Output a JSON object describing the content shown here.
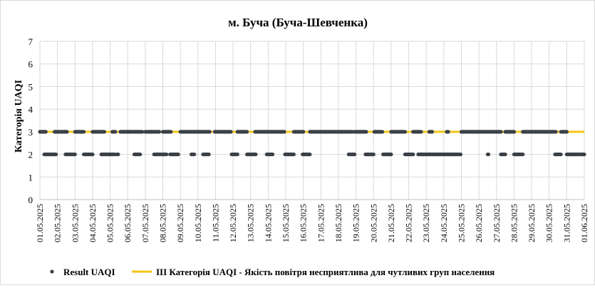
{
  "chart_data": {
    "type": "scatter",
    "title": "м. Буча (Буча-Шевченка)",
    "ylabel": "Категорія UAQI",
    "xlabel": "",
    "ylim": [
      0,
      7
    ],
    "yticks": [
      "0",
      "1",
      "2",
      "3",
      "4",
      "5",
      "6",
      "7"
    ],
    "xticks": [
      "01.05.2025",
      "02.05.2025",
      "03.05.2025",
      "04.05.2025",
      "05.05.2025",
      "06.05.2025",
      "07.05.2025",
      "08.05.2025",
      "09.05.2025",
      "10.05.2025",
      "11.05.2025",
      "12.05.2025",
      "13.05.2025",
      "14.05.2025",
      "15.05.2025",
      "16.05.2025",
      "17.05.2025",
      "18.05.2025",
      "19.05.2025",
      "20.05.2025",
      "21.05.2025",
      "22.05.2025",
      "23.05.2025",
      "24.05.2025",
      "25.05.2025",
      "26.05.2025",
      "27.05.2025",
      "28.05.2025",
      "29.05.2025",
      "30.05.2025",
      "31.05.2025",
      "01.06.2025"
    ],
    "grid": "vertical and horizontal",
    "legend_position": "bottom",
    "series": [
      {
        "name": "Result UAQI",
        "kind": "points",
        "color": "#3b4047",
        "segments": [
          {
            "y": 3,
            "from": "01.05.2025 00:00",
            "to": "01.05.2025 08:00"
          },
          {
            "y": 2,
            "from": "01.05.2025 06:00",
            "to": "01.05.2025 22:00"
          },
          {
            "y": 3,
            "from": "01.05.2025 20:00",
            "to": "02.05.2025 13:00"
          },
          {
            "y": 2,
            "from": "02.05.2025 11:00",
            "to": "03.05.2025 00:00"
          },
          {
            "y": 3,
            "from": "03.05.2025 00:00",
            "to": "03.05.2025 12:00"
          },
          {
            "y": 2,
            "from": "03.05.2025 12:00",
            "to": "04.05.2025 00:00"
          },
          {
            "y": 3,
            "from": "04.05.2025 00:00",
            "to": "04.05.2025 16:00"
          },
          {
            "y": 2,
            "from": "04.05.2025 12:00",
            "to": "05.05.2025 06:00"
          },
          {
            "y": 3,
            "from": "05.05.2025 03:00",
            "to": "05.05.2025 07:00"
          },
          {
            "y": 2,
            "from": "05.05.2025 09:00",
            "to": "05.05.2025 11:00"
          },
          {
            "y": 3,
            "from": "05.05.2025 14:00",
            "to": "06.05.2025 20:00"
          },
          {
            "y": 2,
            "from": "06.05.2025 09:00",
            "to": "06.05.2025 17:00"
          },
          {
            "y": 3,
            "from": "07.05.2025 00:00",
            "to": "07.05.2025 19:00"
          },
          {
            "y": 2,
            "from": "07.05.2025 12:00",
            "to": "08.05.2025 05:00"
          },
          {
            "y": 3,
            "from": "08.05.2025 00:00",
            "to": "08.05.2025 11:00"
          },
          {
            "y": 2,
            "from": "08.05.2025 10:00",
            "to": "08.05.2025 21:00"
          },
          {
            "y": 3,
            "from": "09.05.2025 00:00",
            "to": "10.05.2025 16:00"
          },
          {
            "y": 2,
            "from": "09.05.2025 15:00",
            "to": "09.05.2025 19:00"
          },
          {
            "y": 2,
            "from": "10.05.2025 07:00",
            "to": "10.05.2025 15:00"
          },
          {
            "y": 3,
            "from": "10.05.2025 23:00",
            "to": "11.05.2025 21:00"
          },
          {
            "y": 2,
            "from": "11.05.2025 22:00",
            "to": "12.05.2025 06:00"
          },
          {
            "y": 3,
            "from": "12.05.2025 06:00",
            "to": "12.05.2025 19:00"
          },
          {
            "y": 2,
            "from": "12.05.2025 19:00",
            "to": "13.05.2025 07:00"
          },
          {
            "y": 3,
            "from": "13.05.2025 06:00",
            "to": "14.05.2025 22:00"
          },
          {
            "y": 2,
            "from": "13.05.2025 22:00",
            "to": "14.05.2025 06:00"
          },
          {
            "y": 2,
            "from": "14.05.2025 23:00",
            "to": "15.05.2025 11:00"
          },
          {
            "y": 3,
            "from": "15.05.2025 11:00",
            "to": "16.05.2025 00:00"
          },
          {
            "y": 2,
            "from": "15.05.2025 23:00",
            "to": "16.05.2025 09:00"
          },
          {
            "y": 3,
            "from": "16.05.2025 09:00",
            "to": "18.05.2025 19:00"
          },
          {
            "y": 2,
            "from": "18.05.2025 14:00",
            "to": "18.05.2025 22:00"
          },
          {
            "y": 3,
            "from": "18.05.2025 22:00",
            "to": "19.05.2025 14:00"
          },
          {
            "y": 2,
            "from": "19.05.2025 13:00",
            "to": "20.05.2025 00:00"
          },
          {
            "y": 3,
            "from": "20.05.2025 01:00",
            "to": "20.05.2025 12:00"
          },
          {
            "y": 2,
            "from": "20.05.2025 13:00",
            "to": "21.05.2025 00:00"
          },
          {
            "y": 3,
            "from": "21.05.2025 00:00",
            "to": "21.05.2025 19:00"
          },
          {
            "y": 2,
            "from": "21.05.2025 19:00",
            "to": "22.05.2025 06:00"
          },
          {
            "y": 3,
            "from": "22.05.2025 06:00",
            "to": "22.05.2025 17:00"
          },
          {
            "y": 2,
            "from": "22.05.2025 13:00",
            "to": "24.05.2025 23:00"
          },
          {
            "y": 3,
            "from": "23.05.2025 04:00",
            "to": "23.05.2025 08:00"
          },
          {
            "y": 3,
            "from": "24.05.2025 04:00",
            "to": "24.05.2025 06:00"
          },
          {
            "y": 3,
            "from": "25.05.2025 00:00",
            "to": "27.05.2025 06:00"
          },
          {
            "y": 2,
            "from": "26.05.2025 12:00",
            "to": "26.05.2025 13:00"
          },
          {
            "y": 2,
            "from": "27.05.2025 06:00",
            "to": "27.05.2025 12:00"
          },
          {
            "y": 3,
            "from": "27.05.2025 12:00",
            "to": "28.05.2025 00:00"
          },
          {
            "y": 2,
            "from": "28.05.2025 00:00",
            "to": "28.05.2025 12:00"
          },
          {
            "y": 3,
            "from": "28.05.2025 12:00",
            "to": "30.05.2025 09:00"
          },
          {
            "y": 2,
            "from": "30.05.2025 08:00",
            "to": "30.05.2025 16:00"
          },
          {
            "y": 3,
            "from": "30.05.2025 16:00",
            "to": "31.05.2025 00:00"
          },
          {
            "y": 2,
            "from": "31.05.2025 00:00",
            "to": "01.06.2025 00:00"
          }
        ]
      },
      {
        "name": "ІІІ Категорія UAQI - Якість повітря несприятлива для чутливих груп населення",
        "kind": "line",
        "color": "#f5c518",
        "y": 3
      }
    ]
  }
}
